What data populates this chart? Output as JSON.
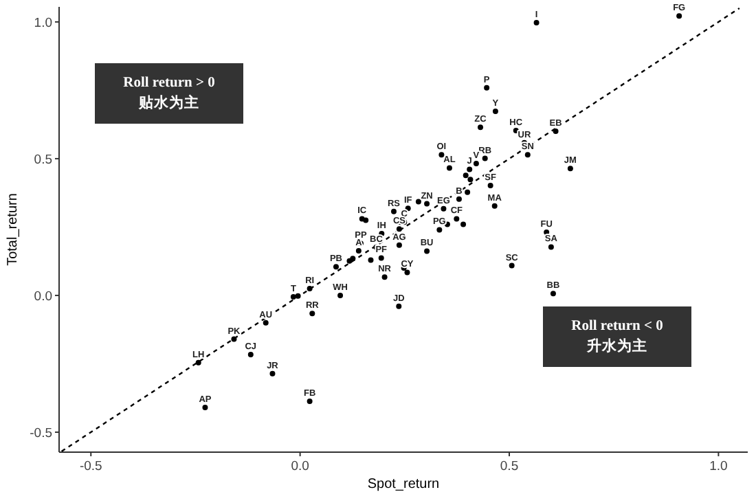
{
  "chart_data": {
    "type": "scatter",
    "xlabel": "Spot_return",
    "ylabel": "Total_return",
    "xlim": [
      -0.576,
      1.07
    ],
    "ylim": [
      -0.573,
      1.055
    ],
    "xticks": [
      {
        "value": -0.5,
        "label": "-0.5"
      },
      {
        "value": 0,
        "label": "0.0"
      },
      {
        "value": 0.5,
        "label": "0.5"
      },
      {
        "value": 1,
        "label": "1.0"
      }
    ],
    "yticks": [
      {
        "value": -0.5,
        "label": "-0.5"
      },
      {
        "value": 0,
        "label": "0.0"
      },
      {
        "value": 0.5,
        "label": "0.5"
      },
      {
        "value": 1,
        "label": "1.0"
      }
    ],
    "grid": false,
    "marker": "circle",
    "series": [
      {
        "color": "#000000",
        "x": [
          -0.227,
          -0.243,
          -0.158,
          -0.118,
          -0.082,
          -0.066,
          -0.016,
          -0.005,
          0.023,
          0.029,
          0.023,
          0.096,
          0.086,
          0.145,
          0.14,
          0.148,
          0.157,
          0.126,
          0.118,
          0.224,
          0.258,
          0.303,
          0.283,
          0.343,
          0.374,
          0.39,
          0.333,
          0.352,
          0.4,
          0.38,
          0.455,
          0.465,
          0.24,
          0.249,
          0.237,
          0.195,
          0.237,
          0.182,
          0.194,
          0.169,
          0.303,
          0.256,
          0.248,
          0.202,
          0.236,
          0.506,
          0.906,
          0.565,
          0.446,
          0.467,
          0.431,
          0.516,
          0.611,
          0.536,
          0.544,
          0.646,
          0.338,
          0.357,
          0.442,
          0.421,
          0.405,
          0.396,
          0.407,
          0.589,
          0.6,
          0.605
        ],
        "values": [
          -0.41,
          -0.246,
          -0.16,
          -0.216,
          -0.1,
          -0.286,
          -0.005,
          -0.002,
          0.025,
          -0.066,
          -0.387,
          0.0,
          0.105,
          0.19,
          0.163,
          0.28,
          0.275,
          0.135,
          0.126,
          0.307,
          0.318,
          0.335,
          0.343,
          0.317,
          0.28,
          0.26,
          0.24,
          0.26,
          0.377,
          0.352,
          0.402,
          0.327,
          0.268,
          0.268,
          0.243,
          0.226,
          0.184,
          0.176,
          0.137,
          0.129,
          0.162,
          0.084,
          0.1,
          0.067,
          -0.04,
          0.109,
          1.022,
          0.997,
          0.759,
          0.673,
          0.615,
          0.603,
          0.6,
          0.558,
          0.514,
          0.464,
          0.514,
          0.466,
          0.501,
          0.482,
          0.461,
          0.439,
          0.424,
          0.231,
          0.177,
          0.007
        ]
      },
      {
        "type": "line",
        "marker": "none",
        "color": "#000000",
        "line_style": "dashed",
        "x": [
          -0.57,
          1.05
        ],
        "values": [
          -0.57,
          1.05
        ]
      }
    ],
    "annotations": [
      "Roll return > 0\n贴水为主",
      "Roll return < 0\n升水为主",
      {
        "text": "AP",
        "x": -0.227,
        "y": -0.41
      },
      {
        "text": "LH",
        "x": -0.243,
        "y": -0.246
      },
      {
        "text": "PK",
        "x": -0.158,
        "y": -0.16
      },
      {
        "text": "CJ",
        "x": -0.118,
        "y": -0.216
      },
      {
        "text": "AU",
        "x": -0.082,
        "y": -0.1
      },
      {
        "text": "JR",
        "x": -0.066,
        "y": -0.286
      },
      {
        "text": "T",
        "x": -0.016,
        "y": -0.005
      },
      {
        "text": "RI",
        "x": 0.023,
        "y": 0.025
      },
      {
        "text": "RR",
        "x": 0.029,
        "y": -0.066
      },
      {
        "text": "FB",
        "x": 0.023,
        "y": -0.387
      },
      {
        "text": "WH",
        "x": 0.096,
        "y": 0.0
      },
      {
        "text": "PB",
        "x": 0.086,
        "y": 0.105
      },
      {
        "text": "PP",
        "x": 0.145,
        "y": 0.19
      },
      {
        "text": "A",
        "x": 0.14,
        "y": 0.163
      },
      {
        "text": "IC",
        "x": 0.148,
        "y": 0.28
      },
      {
        "text": "RS",
        "x": 0.224,
        "y": 0.307
      },
      {
        "text": "IF",
        "x": 0.258,
        "y": 0.318
      },
      {
        "text": "ZN",
        "x": 0.303,
        "y": 0.335
      },
      {
        "text": "EG",
        "x": 0.343,
        "y": 0.317
      },
      {
        "text": "CF",
        "x": 0.374,
        "y": 0.28
      },
      {
        "text": "PG",
        "x": 0.333,
        "y": 0.24
      },
      {
        "text": "B",
        "x": 0.38,
        "y": 0.352
      },
      {
        "text": "SF",
        "x": 0.455,
        "y": 0.402
      },
      {
        "text": "MA",
        "x": 0.465,
        "y": 0.327
      },
      {
        "text": "C",
        "x": 0.249,
        "y": 0.268
      },
      {
        "text": "CS",
        "x": 0.237,
        "y": 0.243
      },
      {
        "text": "IH",
        "x": 0.195,
        "y": 0.226
      },
      {
        "text": "AG",
        "x": 0.237,
        "y": 0.184
      },
      {
        "text": "BC",
        "x": 0.182,
        "y": 0.176
      },
      {
        "text": "PF",
        "x": 0.194,
        "y": 0.137
      },
      {
        "text": "BU",
        "x": 0.303,
        "y": 0.162
      },
      {
        "text": "CY",
        "x": 0.256,
        "y": 0.084
      },
      {
        "text": "NR",
        "x": 0.202,
        "y": 0.067
      },
      {
        "text": "JD",
        "x": 0.236,
        "y": -0.04
      },
      {
        "text": "SC",
        "x": 0.506,
        "y": 0.109
      },
      {
        "text": "FG",
        "x": 0.906,
        "y": 1.022
      },
      {
        "text": "I",
        "x": 0.565,
        "y": 0.997
      },
      {
        "text": "P",
        "x": 0.446,
        "y": 0.759
      },
      {
        "text": "Y",
        "x": 0.467,
        "y": 0.673
      },
      {
        "text": "ZC",
        "x": 0.431,
        "y": 0.615
      },
      {
        "text": "HC",
        "x": 0.516,
        "y": 0.603
      },
      {
        "text": "EB",
        "x": 0.611,
        "y": 0.6
      },
      {
        "text": "UR",
        "x": 0.536,
        "y": 0.558
      },
      {
        "text": "SN",
        "x": 0.544,
        "y": 0.514
      },
      {
        "text": "JM",
        "x": 0.646,
        "y": 0.464
      },
      {
        "text": "OI",
        "x": 0.338,
        "y": 0.514
      },
      {
        "text": "AL",
        "x": 0.357,
        "y": 0.466
      },
      {
        "text": "RB",
        "x": 0.442,
        "y": 0.501
      },
      {
        "text": "V",
        "x": 0.421,
        "y": 0.482
      },
      {
        "text": "J",
        "x": 0.405,
        "y": 0.461
      },
      {
        "text": "FU",
        "x": 0.589,
        "y": 0.231
      },
      {
        "text": "SA",
        "x": 0.6,
        "y": 0.177
      },
      {
        "text": "BB",
        "x": 0.605,
        "y": 0.007
      }
    ]
  }
}
